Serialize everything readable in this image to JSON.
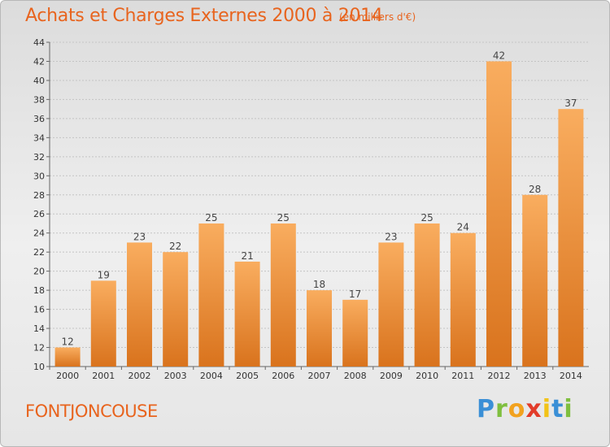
{
  "title": "Achats et Charges Externes 2000 à 2014",
  "subtitle": "(en milliers d'€)",
  "commune": "FONTJONCOUSE",
  "brand": {
    "letters": [
      "P",
      "r",
      "o",
      "x",
      "i",
      "t",
      "i"
    ],
    "colors": [
      "#3a8fd6",
      "#7fbf3f",
      "#f2a21e",
      "#e23c2a",
      "#f2c318",
      "#3a8fd6",
      "#7fbf3f"
    ]
  },
  "colors": {
    "accent": "#e8641e",
    "bar_light": "#f7a656",
    "bar_dark": "#d8741f"
  },
  "chart_data": {
    "type": "bar",
    "title": "Achats et Charges Externes 2000 à 2014",
    "subtitle": "(en milliers d'€)",
    "categories": [
      "2000",
      "2001",
      "2002",
      "2003",
      "2004",
      "2005",
      "2006",
      "2007",
      "2008",
      "2009",
      "2010",
      "2011",
      "2012",
      "2013",
      "2014"
    ],
    "values": [
      12,
      19,
      23,
      22,
      25,
      21,
      25,
      18,
      17,
      23,
      25,
      24,
      42,
      28,
      37
    ],
    "ylim": [
      10,
      44
    ],
    "yticks": [
      10,
      12,
      14,
      16,
      18,
      20,
      22,
      24,
      26,
      28,
      30,
      32,
      34,
      36,
      38,
      40,
      42,
      44
    ],
    "grid": true,
    "legend": "none"
  }
}
